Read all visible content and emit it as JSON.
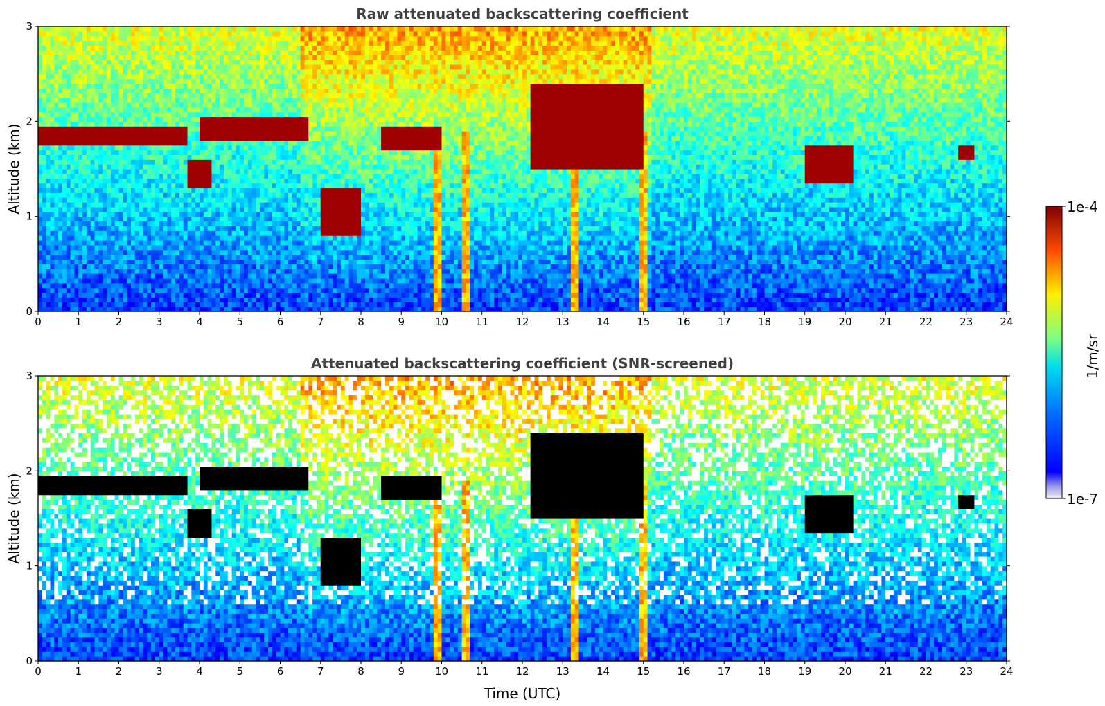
{
  "chart_data": [
    {
      "type": "heatmap",
      "title": "Raw attenuated backscattering coefficient",
      "xlabel": "",
      "ylabel": "Altitude (km)",
      "xlim": [
        0,
        24
      ],
      "ylim": [
        0,
        3
      ],
      "xticks": [
        "0",
        "1",
        "2",
        "3",
        "4",
        "5",
        "6",
        "7",
        "8",
        "9",
        "10",
        "11",
        "12",
        "13",
        "14",
        "15",
        "16",
        "17",
        "18",
        "19",
        "20",
        "21",
        "22",
        "23",
        "24"
      ],
      "yticks": [
        "0",
        "1",
        "2",
        "3"
      ],
      "colormap": "jet",
      "color_scale": "log",
      "clim": [
        "1e-7",
        "1e-4"
      ],
      "cloud_layers": [
        {
          "t_start": 0.0,
          "t_end": 3.7,
          "alt_bottom": 1.75,
          "alt_top": 1.95
        },
        {
          "t_start": 4.0,
          "t_end": 6.7,
          "alt_bottom": 1.8,
          "alt_top": 2.05
        },
        {
          "t_start": 3.7,
          "t_end": 4.3,
          "alt_bottom": 1.3,
          "alt_top": 1.6
        },
        {
          "t_start": 7.0,
          "t_end": 8.0,
          "alt_bottom": 0.8,
          "alt_top": 1.3
        },
        {
          "t_start": 8.5,
          "t_end": 10.0,
          "alt_bottom": 1.7,
          "alt_top": 1.95
        },
        {
          "t_start": 12.2,
          "t_end": 15.0,
          "alt_bottom": 1.5,
          "alt_top": 2.4
        },
        {
          "t_start": 19.0,
          "t_end": 20.2,
          "alt_bottom": 1.35,
          "alt_top": 1.75
        },
        {
          "t_start": 22.8,
          "t_end": 23.2,
          "alt_bottom": 1.6,
          "alt_top": 1.75
        }
      ],
      "precipitation_streaks": [
        9.9,
        10.6,
        13.3,
        15.0
      ]
    },
    {
      "type": "heatmap",
      "title": "Attenuated backscattering coefficient (SNR-screened)",
      "xlabel": "Time (UTC)",
      "ylabel": "Altitude (km)",
      "xlim": [
        0,
        24
      ],
      "ylim": [
        0,
        3
      ],
      "xticks": [
        "0",
        "1",
        "2",
        "3",
        "4",
        "5",
        "6",
        "7",
        "8",
        "9",
        "10",
        "11",
        "12",
        "13",
        "14",
        "15",
        "16",
        "17",
        "18",
        "19",
        "20",
        "21",
        "22",
        "23",
        "24"
      ],
      "yticks": [
        "0",
        "1",
        "2",
        "3"
      ],
      "colormap": "jet",
      "color_scale": "log",
      "clim": [
        "1e-7",
        "1e-4"
      ],
      "saturated_color": "#000000"
    }
  ],
  "colorbar": {
    "max_label": "1e-4",
    "min_label": "1e-7",
    "label": "1/m/sr"
  }
}
